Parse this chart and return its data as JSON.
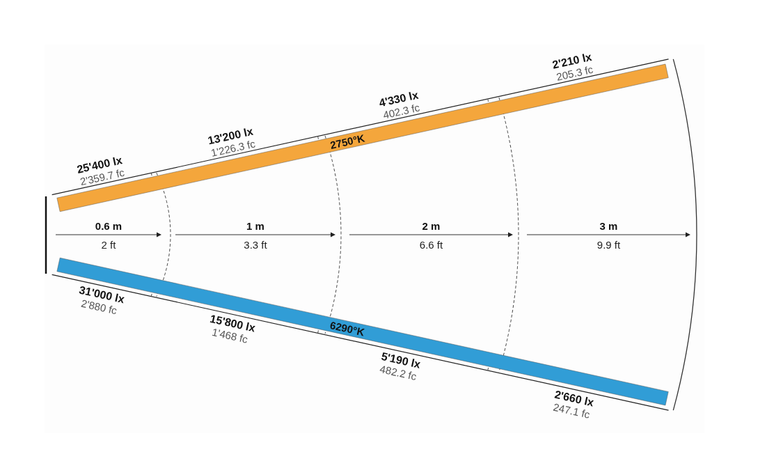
{
  "chart_data": {
    "type": "other",
    "categories": [
      "0.6 m",
      "1 m",
      "2 m",
      "3 m"
    ],
    "annotations": [
      "2 ft",
      "3.3 ft",
      "6.6 ft",
      "9.9 ft"
    ],
    "series": [
      {
        "name": "2750°K",
        "values": [
          25400,
          13200,
          4330,
          2210
        ],
        "value_labels": [
          "25'400 lx\n2'359.7 fc",
          "13'200 lx\n1'226.3 fc",
          "4'330 lx\n402.3 fc",
          "2'210 lx\n205.3 fc"
        ]
      },
      {
        "name": "6290°K",
        "values": [
          31000,
          15800,
          5190,
          2660
        ],
        "value_labels": [
          "31'000 lx\n2'880 fc",
          "15'800 lx\n1'468 fc",
          "5'190 lx\n482.2 fc",
          "2'660 lx\n247.1 fc"
        ]
      }
    ]
  }
}
